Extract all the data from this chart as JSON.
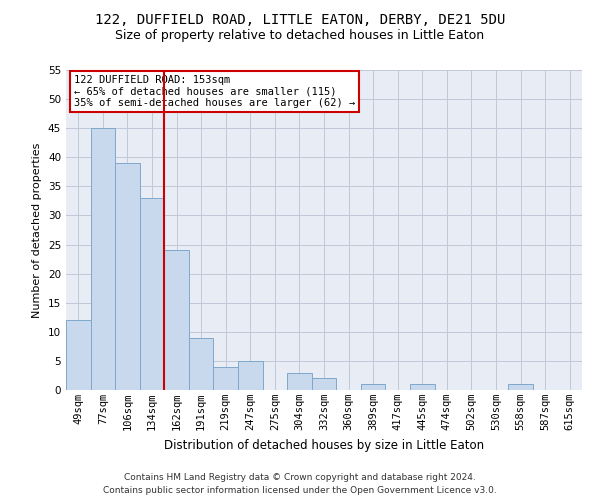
{
  "title1": "122, DUFFIELD ROAD, LITTLE EATON, DERBY, DE21 5DU",
  "title2": "Size of property relative to detached houses in Little Eaton",
  "xlabel": "Distribution of detached houses by size in Little Eaton",
  "ylabel": "Number of detached properties",
  "bar_labels": [
    "49sqm",
    "77sqm",
    "106sqm",
    "134sqm",
    "162sqm",
    "191sqm",
    "219sqm",
    "247sqm",
    "275sqm",
    "304sqm",
    "332sqm",
    "360sqm",
    "389sqm",
    "417sqm",
    "445sqm",
    "474sqm",
    "502sqm",
    "530sqm",
    "558sqm",
    "587sqm",
    "615sqm"
  ],
  "bar_values": [
    12,
    45,
    39,
    33,
    24,
    9,
    4,
    5,
    0,
    3,
    2,
    0,
    1,
    0,
    1,
    0,
    0,
    0,
    1,
    0,
    0
  ],
  "bar_color": "#c9d9ed",
  "bar_edgecolor": "#7fa8cc",
  "grid_color": "#c0c8d8",
  "background_color": "#e8edf5",
  "vline_x": 4.0,
  "vline_color": "#cc0000",
  "annotation_line1": "122 DUFFIELD ROAD: 153sqm",
  "annotation_line2": "← 65% of detached houses are smaller (115)",
  "annotation_line3": "35% of semi-detached houses are larger (62) →",
  "annotation_box_color": "#cc0000",
  "ylim": [
    0,
    55
  ],
  "yticks": [
    0,
    5,
    10,
    15,
    20,
    25,
    30,
    35,
    40,
    45,
    50,
    55
  ],
  "footer1": "Contains HM Land Registry data © Crown copyright and database right 2024.",
  "footer2": "Contains public sector information licensed under the Open Government Licence v3.0.",
  "title1_fontsize": 10,
  "title2_fontsize": 9,
  "xlabel_fontsize": 8.5,
  "ylabel_fontsize": 8,
  "tick_fontsize": 7.5,
  "annotation_fontsize": 7.5,
  "footer_fontsize": 6.5
}
